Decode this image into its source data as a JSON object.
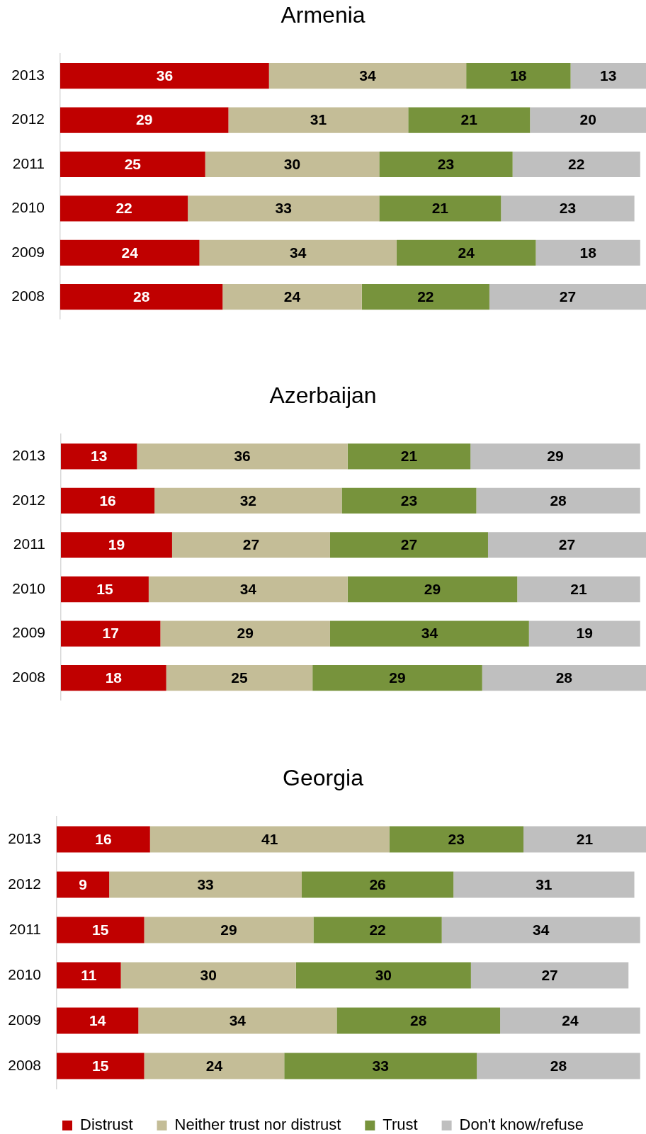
{
  "chart_data": [
    {
      "type": "bar",
      "orientation": "horizontal",
      "stacked": true,
      "title": "Armenia",
      "categories": [
        "2013",
        "2012",
        "2011",
        "2010",
        "2009",
        "2008"
      ],
      "tick_labels": "y",
      "data_labels": true,
      "series": [
        {
          "color": "#c00000",
          "values": [
            36,
            29,
            25,
            22,
            24,
            28
          ]
        },
        {
          "color": "#c4bd97",
          "values": [
            34,
            31,
            30,
            33,
            34,
            24
          ]
        },
        {
          "color": "#77933c",
          "values": [
            18,
            21,
            23,
            21,
            24,
            22
          ]
        },
        {
          "color": "#bfbfbf",
          "values": [
            13,
            20,
            22,
            23,
            18,
            27
          ]
        }
      ]
    },
    {
      "type": "bar",
      "orientation": "horizontal",
      "stacked": true,
      "title": "Azerbaijan",
      "categories": [
        "2013",
        "2012",
        "2011",
        "2010",
        "2009",
        "2008"
      ],
      "tick_labels": "y",
      "data_labels": true,
      "series": [
        {
          "color": "#c00000",
          "values": [
            13,
            16,
            19,
            15,
            17,
            18
          ]
        },
        {
          "color": "#c4bd97",
          "values": [
            36,
            32,
            27,
            34,
            29,
            25
          ]
        },
        {
          "color": "#77933c",
          "values": [
            21,
            23,
            27,
            29,
            34,
            29
          ]
        },
        {
          "color": "#bfbfbf",
          "values": [
            29,
            28,
            27,
            21,
            19,
            28
          ]
        }
      ]
    },
    {
      "type": "bar",
      "orientation": "horizontal",
      "stacked": true,
      "title": "Georgia",
      "categories": [
        "2013",
        "2012",
        "2011",
        "2010",
        "2009",
        "2008"
      ],
      "tick_labels": "y",
      "data_labels": true,
      "legend": "bottom",
      "series": [
        {
          "name": "Distrust",
          "color": "#c00000",
          "values": [
            16,
            9,
            15,
            11,
            14,
            15
          ]
        },
        {
          "name": "Neither trust nor distrust",
          "color": "#c4bd97",
          "values": [
            41,
            33,
            29,
            30,
            34,
            24
          ]
        },
        {
          "name": "Trust",
          "color": "#77933c",
          "values": [
            23,
            26,
            22,
            30,
            28,
            33
          ]
        },
        {
          "name": "Don't know/refuse",
          "color": "#bfbfbf",
          "values": [
            21,
            31,
            34,
            27,
            24,
            28
          ]
        }
      ]
    }
  ]
}
